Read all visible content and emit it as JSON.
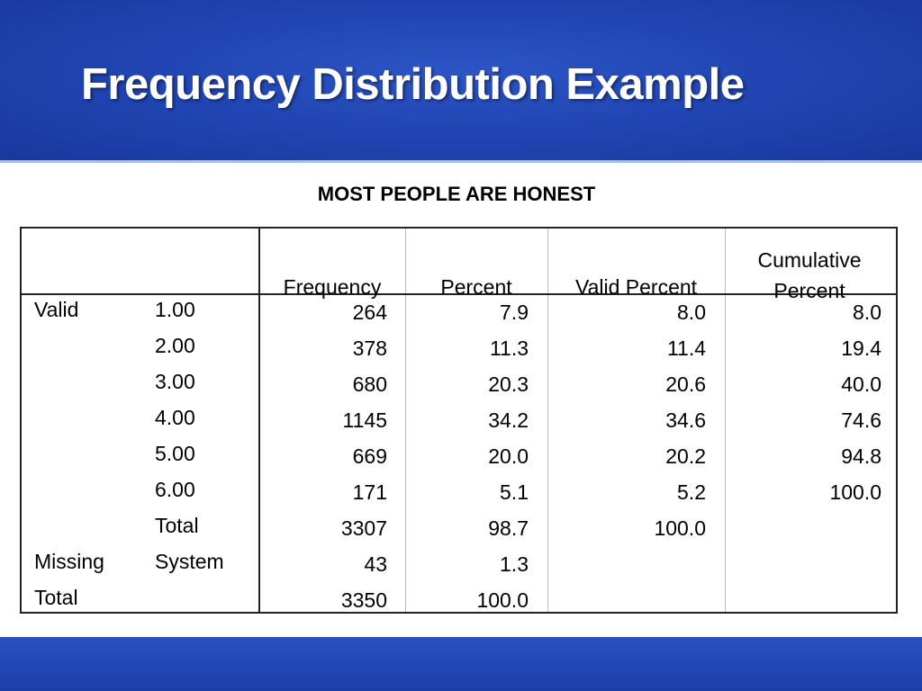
{
  "slide": {
    "title": "Frequency Distribution Example",
    "colors": {
      "header_blue": "#2146b4",
      "text": "#000000"
    }
  },
  "chart_data": {
    "type": "table",
    "title": "MOST PEOPLE ARE HONEST",
    "columns": [
      "Frequency",
      "Percent",
      "Valid Percent",
      "Cumulative Percent"
    ],
    "rows": [
      {
        "group": "Valid",
        "label": "1.00",
        "frequency": "264",
        "percent": "7.9",
        "valid_percent": "8.0",
        "cumulative_percent": "8.0"
      },
      {
        "group": "",
        "label": "2.00",
        "frequency": "378",
        "percent": "11.3",
        "valid_percent": "11.4",
        "cumulative_percent": "19.4"
      },
      {
        "group": "",
        "label": "3.00",
        "frequency": "680",
        "percent": "20.3",
        "valid_percent": "20.6",
        "cumulative_percent": "40.0"
      },
      {
        "group": "",
        "label": "4.00",
        "frequency": "1145",
        "percent": "34.2",
        "valid_percent": "34.6",
        "cumulative_percent": "74.6"
      },
      {
        "group": "",
        "label": "5.00",
        "frequency": "669",
        "percent": "20.0",
        "valid_percent": "20.2",
        "cumulative_percent": "94.8"
      },
      {
        "group": "",
        "label": "6.00",
        "frequency": "171",
        "percent": "5.1",
        "valid_percent": "5.2",
        "cumulative_percent": "100.0"
      },
      {
        "group": "",
        "label": "Total",
        "frequency": "3307",
        "percent": "98.7",
        "valid_percent": "100.0",
        "cumulative_percent": ""
      },
      {
        "group": "Missing",
        "label": "System",
        "frequency": "43",
        "percent": "1.3",
        "valid_percent": "",
        "cumulative_percent": ""
      },
      {
        "group": "Total",
        "label": "",
        "frequency": "3350",
        "percent": "100.0",
        "valid_percent": "",
        "cumulative_percent": ""
      }
    ]
  }
}
